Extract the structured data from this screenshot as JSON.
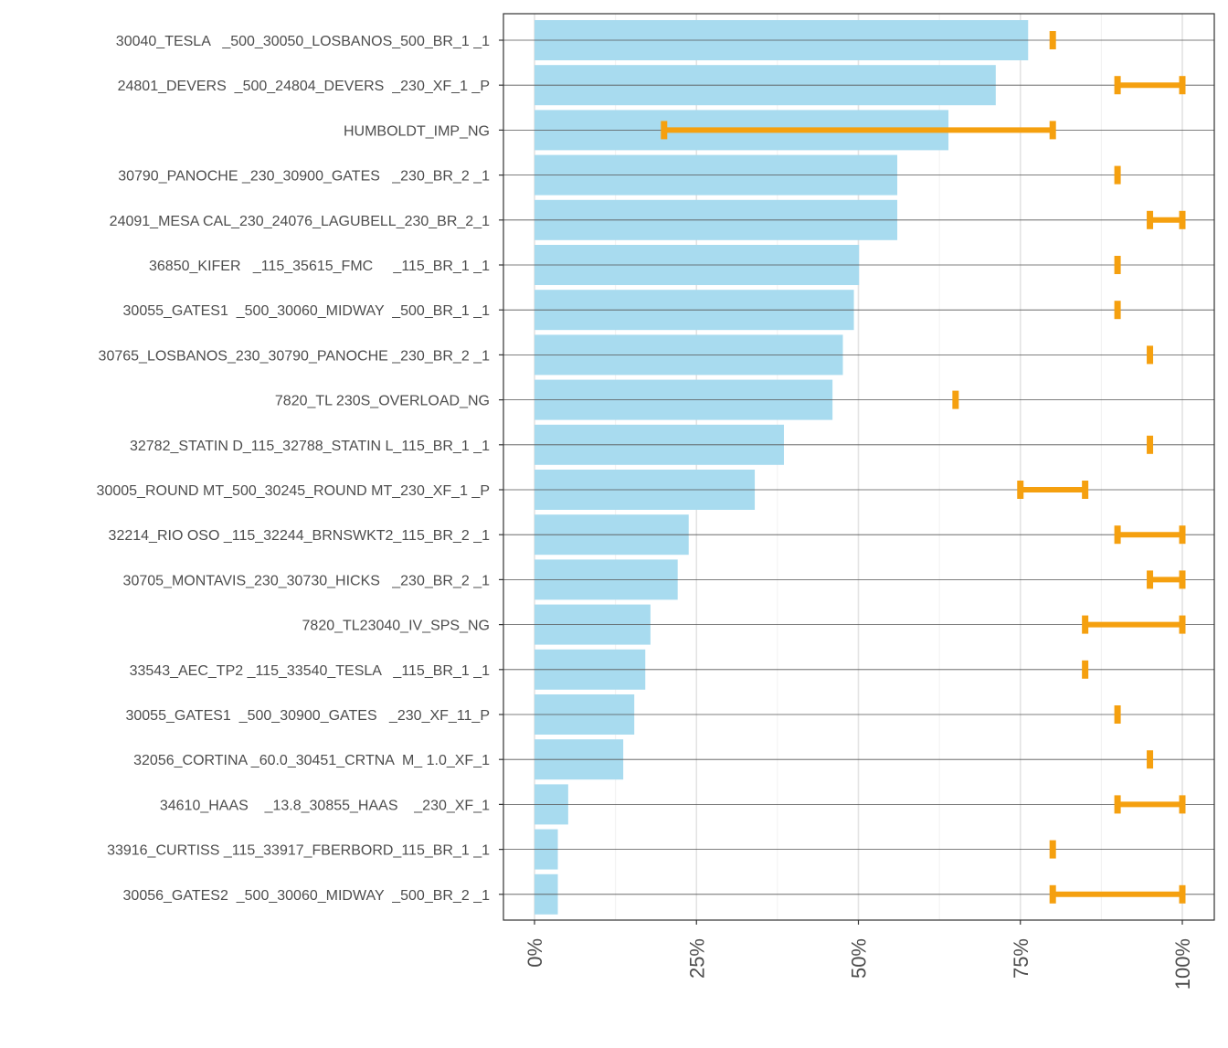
{
  "chart_data": {
    "type": "bar",
    "orientation": "horizontal",
    "categories": [
      "30040_TESLA   _500_30050_LOSBANOS_500_BR_1 _1",
      "24801_DEVERS  _500_24804_DEVERS  _230_XF_1 _P",
      "HUMBOLDT_IMP_NG",
      "30790_PANOCHE _230_30900_GATES   _230_BR_2 _1",
      "24091_MESA CAL_230_24076_LAGUBELL_230_BR_2_1",
      "36850_KIFER   _115_35615_FMC     _115_BR_1 _1",
      "30055_GATES1  _500_30060_MIDWAY  _500_BR_1 _1",
      "30765_LOSBANOS_230_30790_PANOCHE _230_BR_2 _1",
      "7820_TL 230S_OVERLOAD_NG",
      "32782_STATIN D_115_32788_STATIN L_115_BR_1 _1",
      "30005_ROUND MT_500_30245_ROUND MT_230_XF_1 _P",
      "32214_RIO OSO _115_32244_BRNSWKT2_115_BR_2 _1",
      "30705_MONTAVIS_230_30730_HICKS   _230_BR_2 _1",
      "7820_TL23040_IV_SPS_NG",
      "33543_AEC_TP2 _115_33540_TESLA   _115_BR_1 _1",
      "30055_GATES1  _500_30900_GATES   _230_XF_11_P",
      "32056_CORTINA _60.0_30451_CRTNA  M_ 1.0_XF_1",
      "34610_HAAS    _13.8_30855_HAAS    _230_XF_1",
      "33916_CURTISS _115_33917_FBERBORD_115_BR_1 _1",
      "30056_GATES2  _500_30060_MIDWAY  _500_BR_2 _1"
    ],
    "values": [
      76.2,
      71.2,
      63.9,
      56.0,
      56.0,
      50.1,
      49.3,
      47.6,
      46.0,
      38.5,
      34.0,
      23.8,
      22.1,
      17.9,
      17.1,
      15.4,
      13.7,
      5.2,
      3.6,
      3.6
    ],
    "ranges": [
      [
        80,
        80
      ],
      [
        90,
        100
      ],
      [
        20,
        80
      ],
      [
        90,
        90
      ],
      [
        95,
        100
      ],
      [
        90,
        90
      ],
      [
        90,
        90
      ],
      [
        95,
        95
      ],
      [
        65,
        65
      ],
      [
        95,
        95
      ],
      [
        75,
        85
      ],
      [
        90,
        100
      ],
      [
        95,
        100
      ],
      [
        85,
        100
      ],
      [
        85,
        85
      ],
      [
        90,
        90
      ],
      [
        95,
        95
      ],
      [
        90,
        100
      ],
      [
        80,
        80
      ],
      [
        80,
        100
      ]
    ],
    "xlim": [
      -5,
      105
    ],
    "xticks": [
      0,
      25,
      50,
      75,
      100
    ],
    "xtick_labels": [
      "0%",
      "25%",
      "50%",
      "75%",
      "100%"
    ],
    "title": "",
    "xlabel": "",
    "ylabel": "",
    "colors": {
      "bar": "#a8dbef",
      "range": "#f5a00f",
      "grid_major": "#e3e3e3",
      "grid_minor": "#f0f0f0",
      "row_line": "#555555",
      "axis_text": "#4d4d4d",
      "panel_border": "#333333"
    }
  }
}
